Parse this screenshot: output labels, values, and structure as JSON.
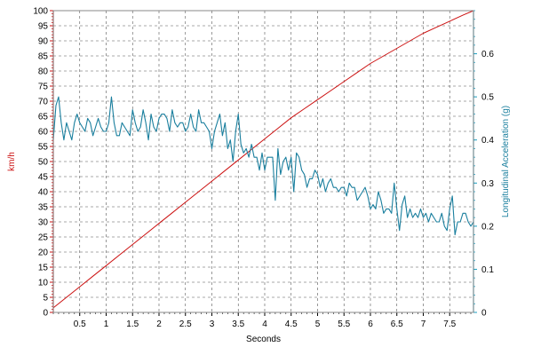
{
  "chart_data": {
    "type": "line",
    "xlabel": "Seconds",
    "ylabel_left": "km/h",
    "ylabel_right": "Longitudinal Acceleration (g)",
    "xlim": [
      0,
      7.95
    ],
    "ylim_left": [
      0,
      100
    ],
    "ylim_right": [
      0,
      0.7
    ],
    "x_ticks": [
      "0.5",
      "1",
      "1.5",
      "2",
      "2.5",
      "3",
      "3.5",
      "4",
      "4.5",
      "5",
      "5.5",
      "6",
      "6.5",
      "7",
      "7.5"
    ],
    "x_tick_values": [
      0.5,
      1,
      1.5,
      2,
      2.5,
      3,
      3.5,
      4,
      4.5,
      5,
      5.5,
      6,
      6.5,
      7,
      7.5
    ],
    "y_left_ticks": [
      "0",
      "5",
      "10",
      "15",
      "20",
      "25",
      "30",
      "35",
      "40",
      "45",
      "50",
      "55",
      "60",
      "65",
      "70",
      "75",
      "80",
      "85",
      "90",
      "95",
      "100"
    ],
    "y_left_tick_values": [
      0,
      5,
      10,
      15,
      20,
      25,
      30,
      35,
      40,
      45,
      50,
      55,
      60,
      65,
      70,
      75,
      80,
      85,
      90,
      95,
      100
    ],
    "y_right_ticks": [
      "0",
      "0.1",
      "0.2",
      "0.3",
      "0.4",
      "0.5",
      "0.6"
    ],
    "y_right_tick_values": [
      0,
      0.1,
      0.2,
      0.3,
      0.4,
      0.5,
      0.6
    ],
    "grid": true,
    "colors": {
      "speed": "#cc1111",
      "accel": "#1a7f9e",
      "grid": "#555555",
      "axis_left": "#cc1111",
      "axis_right": "#1a9ec0",
      "frame": "#888888"
    },
    "series": [
      {
        "axis": "left",
        "x": [
          0,
          0.25,
          0.5,
          0.75,
          1.0,
          1.25,
          1.5,
          1.75,
          2.0,
          2.25,
          2.5,
          2.75,
          3.0,
          3.25,
          3.5,
          3.75,
          4.0,
          4.25,
          4.5,
          4.75,
          5.0,
          5.25,
          5.5,
          5.75,
          6.0,
          6.25,
          6.5,
          6.75,
          7.0,
          7.25,
          7.5,
          7.75,
          7.95
        ],
        "values": [
          1.5,
          5.0,
          8.5,
          12.0,
          15.5,
          19.0,
          22.5,
          26.0,
          29.5,
          33.0,
          36.5,
          40.0,
          43.5,
          47.0,
          50.5,
          54.0,
          57.5,
          61.0,
          64.5,
          67.5,
          70.5,
          73.5,
          76.5,
          79.5,
          82.5,
          85.0,
          87.5,
          90.0,
          92.5,
          94.5,
          96.5,
          98.5,
          100.0
        ]
      },
      {
        "axis": "right",
        "x": [
          0.0,
          0.05,
          0.1,
          0.15,
          0.2,
          0.25,
          0.3,
          0.35,
          0.4,
          0.45,
          0.5,
          0.55,
          0.6,
          0.65,
          0.7,
          0.75,
          0.8,
          0.85,
          0.9,
          0.95,
          1.0,
          1.05,
          1.1,
          1.15,
          1.2,
          1.25,
          1.3,
          1.35,
          1.4,
          1.45,
          1.5,
          1.55,
          1.6,
          1.65,
          1.7,
          1.75,
          1.8,
          1.85,
          1.9,
          1.95,
          2.0,
          2.05,
          2.1,
          2.15,
          2.2,
          2.25,
          2.3,
          2.35,
          2.4,
          2.45,
          2.5,
          2.55,
          2.6,
          2.65,
          2.7,
          2.75,
          2.8,
          2.85,
          2.9,
          2.95,
          3.0,
          3.05,
          3.1,
          3.15,
          3.2,
          3.25,
          3.3,
          3.35,
          3.4,
          3.45,
          3.5,
          3.55,
          3.6,
          3.65,
          3.7,
          3.75,
          3.8,
          3.85,
          3.9,
          3.95,
          4.0,
          4.05,
          4.1,
          4.15,
          4.2,
          4.25,
          4.3,
          4.35,
          4.4,
          4.45,
          4.5,
          4.55,
          4.6,
          4.65,
          4.7,
          4.75,
          4.8,
          4.85,
          4.9,
          4.95,
          5.0,
          5.05,
          5.1,
          5.15,
          5.2,
          5.25,
          5.3,
          5.35,
          5.4,
          5.45,
          5.5,
          5.55,
          5.6,
          5.65,
          5.7,
          5.75,
          5.8,
          5.85,
          5.9,
          5.95,
          6.0,
          6.05,
          6.1,
          6.15,
          6.2,
          6.25,
          6.3,
          6.35,
          6.4,
          6.45,
          6.5,
          6.55,
          6.6,
          6.65,
          6.7,
          6.75,
          6.8,
          6.85,
          6.9,
          6.95,
          7.0,
          7.05,
          7.1,
          7.15,
          7.2,
          7.25,
          7.3,
          7.35,
          7.4,
          7.45,
          7.5,
          7.55,
          7.6,
          7.65,
          7.7,
          7.75,
          7.8,
          7.85,
          7.9,
          7.95
        ],
        "values": [
          0.4,
          0.48,
          0.5,
          0.44,
          0.4,
          0.44,
          0.42,
          0.4,
          0.44,
          0.46,
          0.44,
          0.43,
          0.42,
          0.45,
          0.44,
          0.41,
          0.43,
          0.45,
          0.43,
          0.42,
          0.42,
          0.44,
          0.5,
          0.44,
          0.41,
          0.41,
          0.44,
          0.43,
          0.42,
          0.41,
          0.47,
          0.44,
          0.42,
          0.43,
          0.47,
          0.44,
          0.4,
          0.46,
          0.43,
          0.42,
          0.45,
          0.46,
          0.46,
          0.45,
          0.42,
          0.47,
          0.44,
          0.43,
          0.44,
          0.44,
          0.42,
          0.43,
          0.46,
          0.43,
          0.42,
          0.47,
          0.44,
          0.44,
          0.43,
          0.42,
          0.38,
          0.42,
          0.44,
          0.46,
          0.41,
          0.44,
          0.38,
          0.4,
          0.35,
          0.42,
          0.46,
          0.39,
          0.37,
          0.38,
          0.36,
          0.39,
          0.36,
          0.36,
          0.33,
          0.37,
          0.33,
          0.36,
          0.36,
          0.36,
          0.26,
          0.38,
          0.32,
          0.35,
          0.36,
          0.33,
          0.36,
          0.28,
          0.37,
          0.36,
          0.33,
          0.32,
          0.29,
          0.31,
          0.31,
          0.33,
          0.32,
          0.29,
          0.31,
          0.28,
          0.3,
          0.31,
          0.29,
          0.29,
          0.28,
          0.29,
          0.29,
          0.27,
          0.3,
          0.29,
          0.29,
          0.26,
          0.27,
          0.28,
          0.29,
          0.27,
          0.24,
          0.25,
          0.24,
          0.28,
          0.26,
          0.23,
          0.24,
          0.24,
          0.23,
          0.3,
          0.24,
          0.19,
          0.25,
          0.27,
          0.22,
          0.24,
          0.22,
          0.23,
          0.22,
          0.24,
          0.22,
          0.23,
          0.21,
          0.23,
          0.22,
          0.21,
          0.21,
          0.23,
          0.2,
          0.19,
          0.24,
          0.27,
          0.18,
          0.21,
          0.21,
          0.23,
          0.23,
          0.21,
          0.2,
          0.21
        ]
      }
    ]
  }
}
